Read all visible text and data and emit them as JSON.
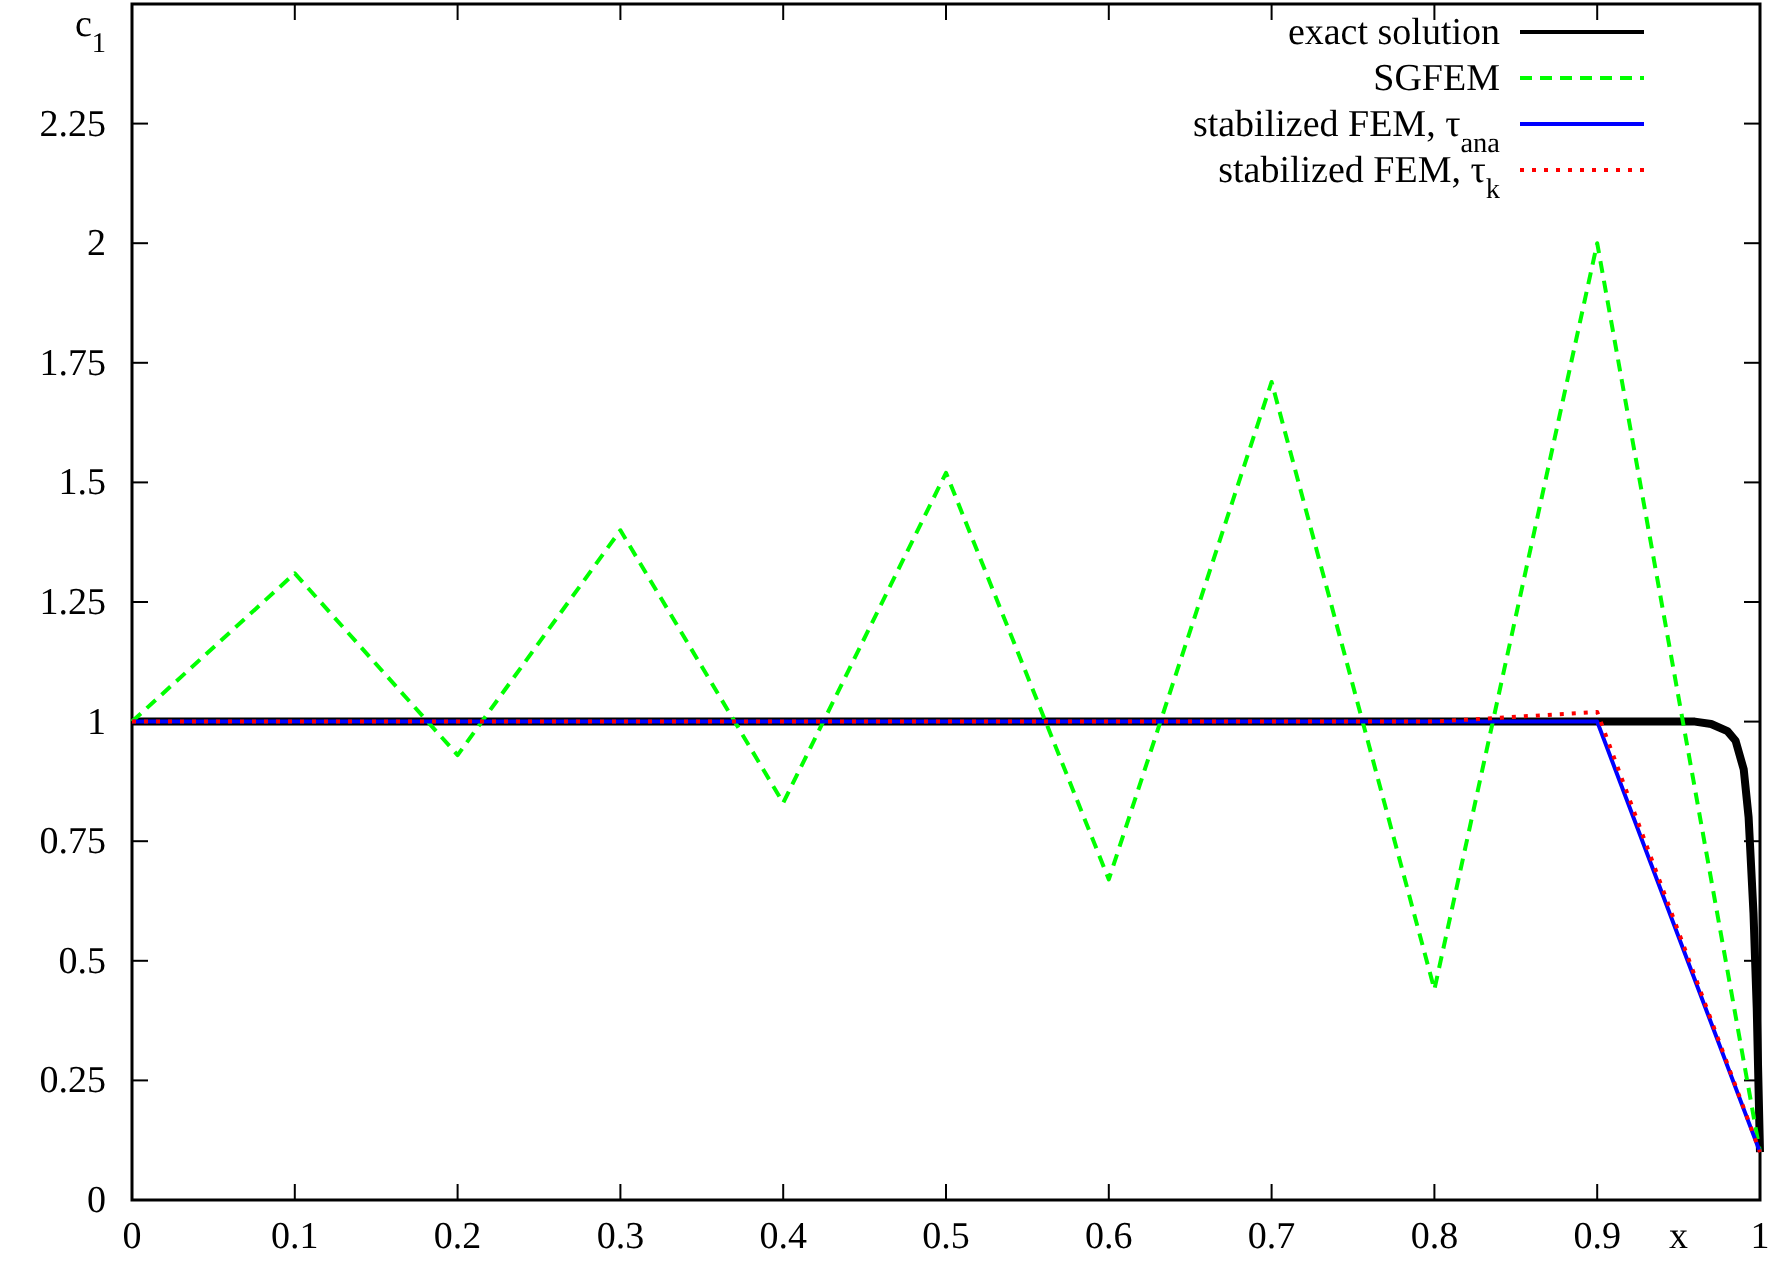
{
  "chart_data": {
    "type": "line",
    "xlabel": "x",
    "ylabel": "c$_{1}$",
    "xlim": [
      0,
      1
    ],
    "ylim": [
      0,
      2.5
    ],
    "xticks": [
      0,
      0.1,
      0.2,
      0.3,
      0.4,
      0.5,
      0.6,
      0.7,
      0.8,
      0.9,
      1
    ],
    "yticks": [
      0,
      0.25,
      0.5,
      0.75,
      1,
      1.25,
      1.5,
      1.75,
      2,
      2.25
    ],
    "legend": "top right",
    "grid": false,
    "marker": "none",
    "series": [
      {
        "name": "exact solution",
        "color": "#000000",
        "line_style": "solid",
        "x": [
          0,
          0.95,
          0.96,
          0.97,
          0.98,
          0.985,
          0.99,
          0.993,
          0.996,
          0.998,
          1
        ],
        "values": [
          1,
          1,
          1,
          0.995,
          0.98,
          0.96,
          0.9,
          0.8,
          0.6,
          0.4,
          0.1
        ]
      },
      {
        "name": "SGFEM",
        "color": "#00ff00",
        "line_style": "dashed",
        "x": [
          0,
          0.1,
          0.2,
          0.3,
          0.4,
          0.5,
          0.6,
          0.7,
          0.8,
          0.9,
          1
        ],
        "values": [
          1,
          1.31,
          0.93,
          1.4,
          0.83,
          1.52,
          0.67,
          1.71,
          0.44,
          2.0,
          0.1
        ]
      },
      {
        "name": "stabilized FEM, τ$_{ana}$",
        "color": "#0000ff",
        "line_style": "solid",
        "x": [
          0,
          0.1,
          0.2,
          0.3,
          0.4,
          0.5,
          0.6,
          0.7,
          0.8,
          0.9,
          1
        ],
        "values": [
          1,
          1,
          1,
          1,
          1,
          1,
          1,
          1,
          1,
          1,
          0.1
        ]
      },
      {
        "name": "stabilized FEM, τ$_{k}$",
        "color": "#ff0000",
        "line_style": "dotted",
        "x": [
          0,
          0.1,
          0.2,
          0.3,
          0.4,
          0.5,
          0.6,
          0.7,
          0.8,
          0.9,
          1
        ],
        "values": [
          1,
          1,
          1,
          1,
          1,
          1,
          1,
          1,
          1,
          1.02,
          0.1
        ]
      }
    ]
  }
}
